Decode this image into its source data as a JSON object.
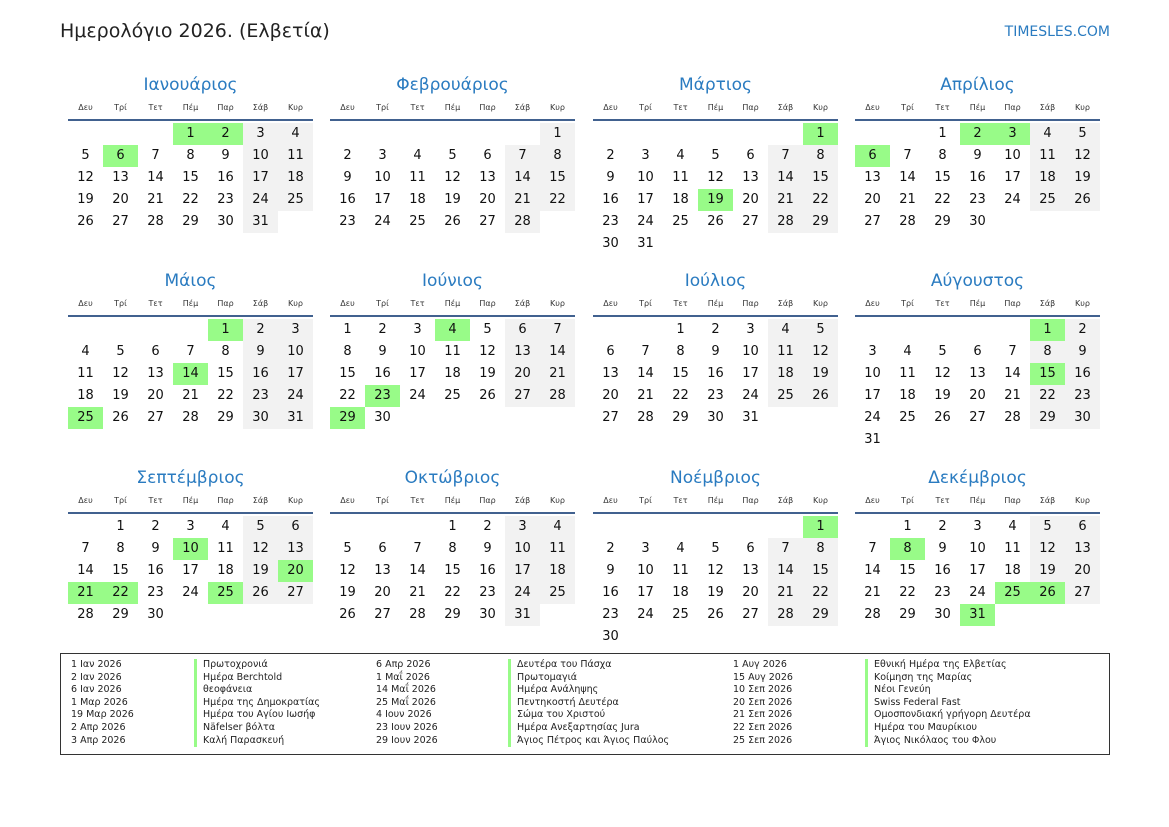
{
  "title": "Ημερολόγιο 2026. (Ελβετία)",
  "site": "TIMESLES.COM",
  "year": 2026,
  "weekdays": [
    "Δευ",
    "Τρί",
    "Τετ",
    "Πέμ",
    "Παρ",
    "Σάβ",
    "Κυρ"
  ],
  "colors": {
    "accent": "#2a7bc0",
    "holiday": "#98fb88",
    "weekend": "#f2f2f2",
    "rule": "#41618f"
  },
  "months": [
    {
      "name": "Ιανουάριος",
      "holidays": [
        1,
        2,
        6
      ]
    },
    {
      "name": "Φεβρουάριος",
      "holidays": []
    },
    {
      "name": "Μάρτιος",
      "holidays": [
        1,
        19
      ]
    },
    {
      "name": "Απρίλιος",
      "holidays": [
        2,
        3,
        6
      ]
    },
    {
      "name": "Μάιος",
      "holidays": [
        1,
        14,
        25
      ]
    },
    {
      "name": "Ιούνιος",
      "holidays": [
        4,
        23,
        29
      ]
    },
    {
      "name": "Ιούλιος",
      "holidays": []
    },
    {
      "name": "Αύγουστος",
      "holidays": [
        1,
        15
      ]
    },
    {
      "name": "Σεπτέμβριος",
      "holidays": [
        10,
        20,
        21,
        22,
        25
      ]
    },
    {
      "name": "Οκτώβριος",
      "holidays": []
    },
    {
      "name": "Νοέμβριος",
      "holidays": [
        1
      ]
    },
    {
      "name": "Δεκέμβριος",
      "holidays": [
        8,
        25,
        26,
        31
      ]
    }
  ],
  "holiday_list": [
    [
      [
        "1 Ιαν 2026",
        "Πρωτοχρονιά"
      ],
      [
        "2 Ιαν 2026",
        "Ημέρα Berchtold"
      ],
      [
        "6 Ιαν 2026",
        "θεοφάνεια"
      ],
      [
        "1 Μαρ 2026",
        "Ημέρα της Δημοκρατίας"
      ],
      [
        "19 Μαρ 2026",
        "Ημέρα του Αγίου Ιωσήφ"
      ],
      [
        "2 Απρ 2026",
        "Näfelser βόλτα"
      ],
      [
        "3 Απρ 2026",
        "Καλή Παρασκευή"
      ]
    ],
    [
      [
        "6 Απρ 2026",
        "Δευτέρα του Πάσχα"
      ],
      [
        "1 Μαΐ 2026",
        "Πρωτομαγιά"
      ],
      [
        "14 Μαΐ 2026",
        "Ημέρα Ανάληψης"
      ],
      [
        "25 Μαΐ 2026",
        "Πεντηκοστή Δευτέρα"
      ],
      [
        "4 Ιουν 2026",
        "Σώμα του Χριστού"
      ],
      [
        "23 Ιουν 2026",
        "Ημέρα Ανεξαρτησίας Jura"
      ],
      [
        "29 Ιουν 2026",
        "Άγιος Πέτρος και Άγιος Παύλος"
      ]
    ],
    [
      [
        "1 Αυγ 2026",
        "Εθνική Ημέρα της Ελβετίας"
      ],
      [
        "15 Αυγ 2026",
        "Κοίμηση της Μαρίας"
      ],
      [
        "10 Σεπ 2026",
        "Νέοι Γενεύη"
      ],
      [
        "20 Σεπ 2026",
        "Swiss Federal Fast"
      ],
      [
        "21 Σεπ 2026",
        "Ομοσπονδιακή γρήγορη Δευτέρα"
      ],
      [
        "22 Σεπ 2026",
        "Ημέρα του Μαυρίκιου"
      ],
      [
        "25 Σεπ 2026",
        "Άγιος Νικόλαος του Φλου"
      ]
    ]
  ]
}
